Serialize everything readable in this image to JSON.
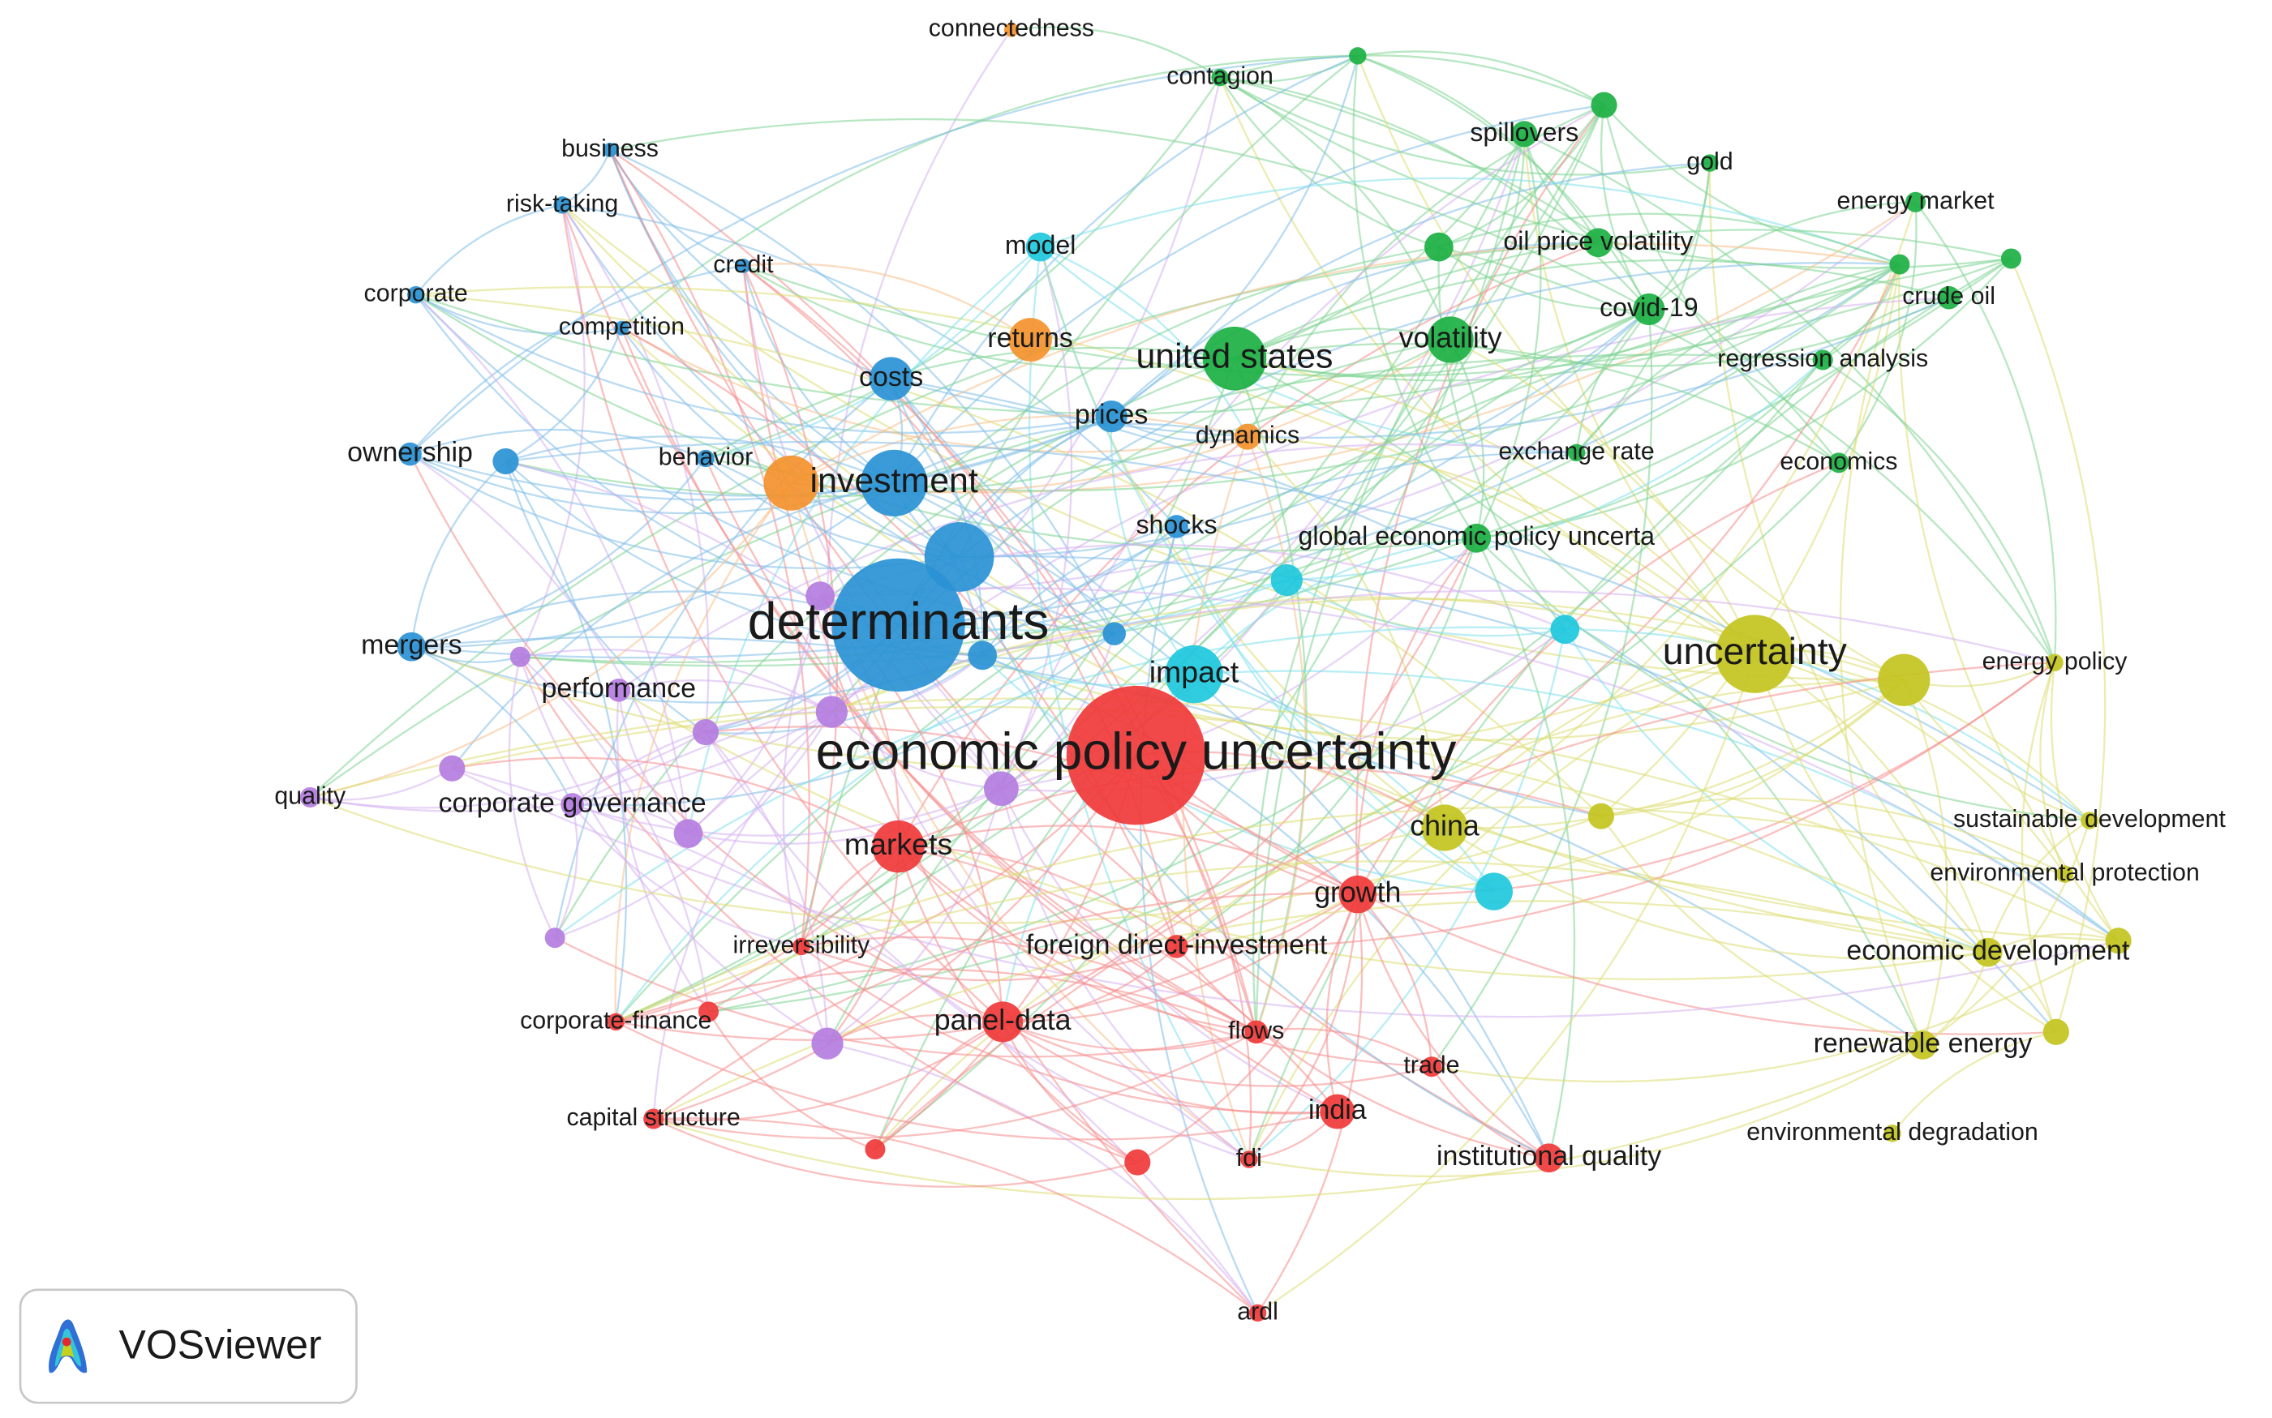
{
  "nodes": [
    {
      "label": "connectedness"
    },
    {
      "label": "contagion"
    },
    {
      "label": "spillovers"
    },
    {
      "label": "gold"
    },
    {
      "label": "energy market"
    },
    {
      "label": "business"
    },
    {
      "label": "risk-taking"
    },
    {
      "label": "credit"
    },
    {
      "label": "corporate"
    },
    {
      "label": "competition"
    },
    {
      "label": "model"
    },
    {
      "label": "oil price volatility"
    },
    {
      "label": "crude oil"
    },
    {
      "label": "covid-19"
    },
    {
      "label": "returns"
    },
    {
      "label": "united states"
    },
    {
      "label": "volatility"
    },
    {
      "label": "regression analysis"
    },
    {
      "label": "costs"
    },
    {
      "label": "prices"
    },
    {
      "label": "dynamics"
    },
    {
      "label": "exchange rate"
    },
    {
      "label": "economics"
    },
    {
      "label": "ownership"
    },
    {
      "label": "behavior"
    },
    {
      "label": "investment"
    },
    {
      "label": "shocks"
    },
    {
      "label": "global economic policy uncerta"
    },
    {
      "label": "determinants"
    },
    {
      "label": "mergers"
    },
    {
      "label": "impact"
    },
    {
      "label": "uncertainty"
    },
    {
      "label": "energy policy"
    },
    {
      "label": "performance"
    },
    {
      "label": "economic policy uncertainty"
    },
    {
      "label": "quality"
    },
    {
      "label": "corporate governance"
    },
    {
      "label": "markets"
    },
    {
      "label": "china"
    },
    {
      "label": "sustainable development"
    },
    {
      "label": "growth"
    },
    {
      "label": "environmental protection"
    },
    {
      "label": "irreversibility"
    },
    {
      "label": "foreign direct-investment"
    },
    {
      "label": "economic development"
    },
    {
      "label": "corporate-finance"
    },
    {
      "label": "panel-data"
    },
    {
      "label": "flows"
    },
    {
      "label": "renewable energy"
    },
    {
      "label": "trade"
    },
    {
      "label": "india"
    },
    {
      "label": "capital structure"
    },
    {
      "label": "fdi"
    },
    {
      "label": "institutional quality"
    },
    {
      "label": "environmental degradation"
    },
    {
      "label": "ardl"
    }
  ],
  "logo": {
    "text": "VOSviewer"
  }
}
